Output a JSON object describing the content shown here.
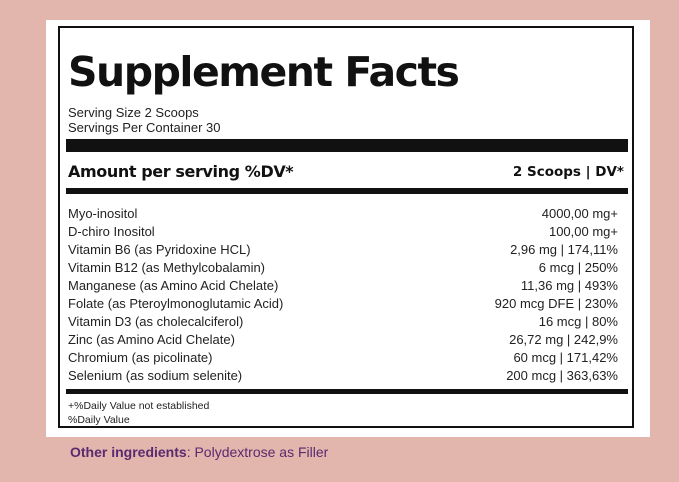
{
  "title": "Supplement Facts",
  "serving_size": "Serving Size 2 Scoops",
  "servings_per_container": "Servings Per Container 30",
  "amount_header": "Amount per serving %DV*",
  "dv_header": "2 Scoops | DV*",
  "nutrients": [
    {
      "name": "Myo-inositol",
      "amount": "4000,00 mg+"
    },
    {
      "name": "D-chiro Inositol",
      "amount": "100,00 mg+"
    },
    {
      "name": "Vitamin B6 (as Pyridoxine HCL)",
      "amount": "2,96 mg | 174,11%"
    },
    {
      "name": "Vitamin B12 (as Methylcobalamin)",
      "amount": "6 mcg | 250%"
    },
    {
      "name": "Manganese (as Amino Acid Chelate)",
      "amount": "11,36 mg | 493%"
    },
    {
      "name": "Folate (as Pteroylmonoglutamic Acid)",
      "amount": "920 mcg DFE | 230%"
    },
    {
      "name": "Vitamin D3 (as cholecalciferol)",
      "amount": "16 mcg | 80%"
    },
    {
      "name": "Zinc (as Amino Acid Chelate)",
      "amount": "26,72 mg | 242,9%"
    },
    {
      "name": "Chromium (as picolinate)",
      "amount": "60 mcg | 171,42%"
    },
    {
      "name": "Selenium (as sodium selenite)",
      "amount": "200 mcg | 363,63%"
    }
  ],
  "footnotes": [
    "+%Daily Value not established",
    "%Daily Value"
  ],
  "other_ingredients": {
    "label": "Other ingredients",
    "separator": ": ",
    "value": "Polydextrose as Filler"
  },
  "colors": {
    "background": "#e2b6ac",
    "panel": "#ffffff",
    "rule": "#111111",
    "other_ingredients_text": "#5a2a70"
  }
}
